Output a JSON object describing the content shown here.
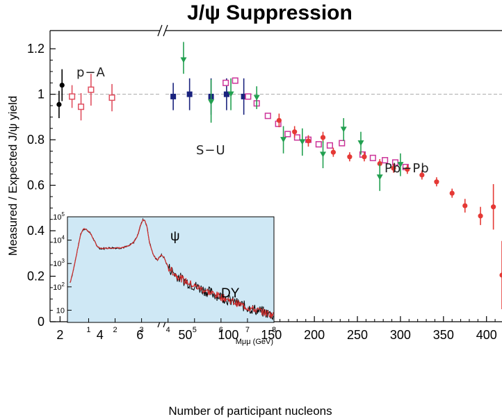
{
  "chart_data": {
    "type": "scatter",
    "title": "J/ψ Suppression",
    "xlabel": "Number of participant nucleons",
    "ylabel": "Measured / Expected J/ψ yield",
    "ylim": [
      0,
      1.28
    ],
    "grid": false,
    "reference_line": 1.0,
    "x_axis_segments": [
      {
        "range": [
          1.5,
          7
        ],
        "ticks": [
          2,
          4,
          6
        ],
        "scale": "linear"
      },
      {
        "range": [
          27,
          418
        ],
        "ticks": [
          50,
          100,
          150,
          200,
          250,
          300,
          350,
          400
        ],
        "scale": "linear"
      }
    ],
    "y_ticks": [
      0,
      0.2,
      0.4,
      0.6,
      0.8,
      1,
      1.2
    ],
    "annotations": [
      "p−A",
      "S−U",
      "Pb−Pb"
    ],
    "series": [
      {
        "color": "#000000",
        "marker": "filled-circle",
        "points": [
          {
            "x": 1.95,
            "y": 0.955,
            "err": 0.06
          },
          {
            "x": 2.1,
            "y": 1.04,
            "err": 0.07
          }
        ]
      },
      {
        "color": "#e05060",
        "marker": "open-square",
        "points": [
          {
            "x": 2.6,
            "y": 0.99,
            "err": 0.05
          },
          {
            "x": 3.05,
            "y": 0.945,
            "err": 0.06
          },
          {
            "x": 3.55,
            "y": 1.02,
            "err": 0.07
          },
          {
            "x": 4.6,
            "y": 0.985,
            "err": 0.06
          }
        ]
      },
      {
        "color": "#1a237e",
        "marker": "filled-square",
        "points": [
          {
            "x": 36,
            "y": 0.99,
            "err": 0.06
          },
          {
            "x": 55,
            "y": 1.0,
            "err": 0.07
          },
          {
            "x": 80,
            "y": 0.99,
            "err": 0.08
          },
          {
            "x": 98,
            "y": 1.0,
            "err": 0.07
          },
          {
            "x": 118,
            "y": 0.99,
            "err": 0.08
          }
        ]
      },
      {
        "color": "#cc3399",
        "marker": "open-square",
        "points": [
          {
            "x": 97,
            "y": 1.05
          },
          {
            "x": 108,
            "y": 1.06
          },
          {
            "x": 123,
            "y": 0.99
          },
          {
            "x": 133,
            "y": 0.96
          },
          {
            "x": 146,
            "y": 0.905
          },
          {
            "x": 158,
            "y": 0.87
          },
          {
            "x": 169,
            "y": 0.825
          },
          {
            "x": 180,
            "y": 0.81
          },
          {
            "x": 193,
            "y": 0.8
          },
          {
            "x": 205,
            "y": 0.78
          },
          {
            "x": 218,
            "y": 0.775
          },
          {
            "x": 232,
            "y": 0.785
          },
          {
            "x": 256,
            "y": 0.735
          },
          {
            "x": 268,
            "y": 0.72
          },
          {
            "x": 282,
            "y": 0.71
          },
          {
            "x": 294,
            "y": 0.7
          },
          {
            "x": 306,
            "y": 0.68
          }
        ]
      },
      {
        "color": "#e53935",
        "marker": "filled-circle",
        "points": [
          {
            "x": 159,
            "y": 0.885,
            "err": 0.03
          },
          {
            "x": 177,
            "y": 0.835,
            "err": 0.025
          },
          {
            "x": 193,
            "y": 0.795,
            "err": 0.025
          },
          {
            "x": 210,
            "y": 0.81,
            "err": 0.025
          },
          {
            "x": 222,
            "y": 0.745,
            "err": 0.02
          },
          {
            "x": 241,
            "y": 0.725,
            "err": 0.02
          },
          {
            "x": 258,
            "y": 0.725,
            "err": 0.02
          },
          {
            "x": 276,
            "y": 0.695,
            "err": 0.02
          },
          {
            "x": 292,
            "y": 0.675,
            "err": 0.02
          },
          {
            "x": 308,
            "y": 0.67,
            "err": 0.02
          },
          {
            "x": 325,
            "y": 0.645,
            "err": 0.02
          },
          {
            "x": 342,
            "y": 0.615,
            "err": 0.02
          },
          {
            "x": 360,
            "y": 0.565,
            "err": 0.02
          },
          {
            "x": 375,
            "y": 0.51,
            "err": 0.03
          },
          {
            "x": 393,
            "y": 0.465,
            "err": 0.04
          },
          {
            "x": 408,
            "y": 0.505,
            "err": 0.1
          },
          {
            "x": 418,
            "y": 0.205,
            "err": 0.15
          }
        ]
      },
      {
        "color": "#22a050",
        "marker": "down-triangle",
        "points": [
          {
            "x": 48,
            "y": 1.15,
            "ehi": 0.08,
            "elo": 0.06
          },
          {
            "x": 80,
            "y": 0.965,
            "ehi": 0.1,
            "elo": 0.09
          },
          {
            "x": 103,
            "y": 1.0,
            "ehi": 0.07,
            "elo": 0.07
          },
          {
            "x": 133,
            "y": 0.985,
            "ehi": 0.05,
            "elo": 0.05
          },
          {
            "x": 164,
            "y": 0.8,
            "ehi": 0.06,
            "elo": 0.06
          },
          {
            "x": 186,
            "y": 0.79,
            "ehi": 0.06,
            "elo": 0.06
          },
          {
            "x": 210,
            "y": 0.735,
            "ehi": 0.06,
            "elo": 0.06
          },
          {
            "x": 234,
            "y": 0.845,
            "ehi": 0.05,
            "elo": 0.05
          },
          {
            "x": 254,
            "y": 0.785,
            "ehi": 0.05,
            "elo": 0.05
          },
          {
            "x": 276,
            "y": 0.635,
            "ehi": 0.06,
            "elo": 0.06
          },
          {
            "x": 300,
            "y": 0.69,
            "ehi": 0.05,
            "elo": 0.05
          }
        ]
      }
    ],
    "inset": {
      "type": "line",
      "xlabel": "Mμμ (GeV)",
      "x_ticks": [
        1,
        2,
        3,
        4,
        5,
        6,
        7,
        8
      ],
      "xlim": [
        0.2,
        8
      ],
      "y_scale": "log",
      "ylim": [
        3,
        100000
      ],
      "y_ticks": [
        10,
        100,
        1000,
        10000,
        100000
      ],
      "annotations": [
        "ψ",
        "DY"
      ],
      "background": "#cfe8f5",
      "curve_colors": [
        "#000000",
        "#d32f2f"
      ],
      "spectrum": [
        [
          0.3,
          150
        ],
        [
          0.4,
          400
        ],
        [
          0.5,
          1400
        ],
        [
          0.6,
          5000
        ],
        [
          0.7,
          18000
        ],
        [
          0.8,
          30000
        ],
        [
          0.9,
          29000
        ],
        [
          1.0,
          24000
        ],
        [
          1.1,
          17000
        ],
        [
          1.2,
          10000
        ],
        [
          1.3,
          6000
        ],
        [
          1.4,
          4600
        ],
        [
          1.5,
          4300
        ],
        [
          1.7,
          4600
        ],
        [
          1.9,
          4700
        ],
        [
          2.1,
          4600
        ],
        [
          2.3,
          4800
        ],
        [
          2.5,
          5500
        ],
        [
          2.7,
          8000
        ],
        [
          2.85,
          16000
        ],
        [
          2.95,
          40000
        ],
        [
          3.05,
          75000
        ],
        [
          3.12,
          72000
        ],
        [
          3.2,
          40000
        ],
        [
          3.3,
          8000
        ],
        [
          3.45,
          2200
        ],
        [
          3.6,
          1400
        ],
        [
          3.7,
          2000
        ],
        [
          3.75,
          2300
        ],
        [
          3.85,
          1800
        ],
        [
          4.0,
          700
        ],
        [
          4.3,
          320
        ],
        [
          4.6,
          190
        ],
        [
          5.0,
          110
        ],
        [
          5.5,
          62
        ],
        [
          6.0,
          38
        ],
        [
          6.5,
          22
        ],
        [
          7.0,
          13
        ],
        [
          7.5,
          9
        ],
        [
          8.0,
          6
        ]
      ]
    }
  }
}
